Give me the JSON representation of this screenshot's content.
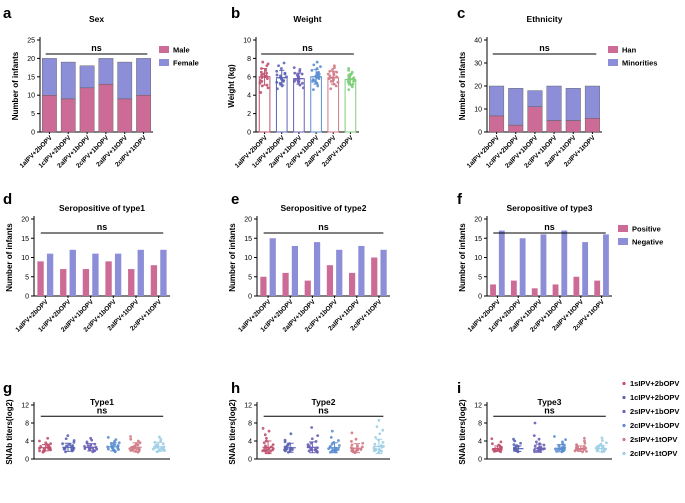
{
  "colors": {
    "pink": "#cc6c96",
    "blue": "#8c8ed8",
    "grey": "#555555"
  },
  "chart_data": [
    {
      "id": "a",
      "panel_letter": "a",
      "type": "bar",
      "stacked": true,
      "title": "Sex",
      "ylabel": "Number of infants",
      "ylim": [
        0,
        25
      ],
      "yticks": [
        0,
        5,
        10,
        15,
        20,
        25
      ],
      "categories": [
        "1aIPV+2bOPV",
        "1cIPV+2bOPV",
        "2aIPV+1bOPV",
        "2cIPV+1bOPV",
        "2aIPV+1tOPV",
        "2cIPV+1tOPV"
      ],
      "series": [
        {
          "name": "Male",
          "color": "#cc6c96",
          "values": [
            10,
            9,
            12,
            13,
            9,
            10
          ]
        },
        {
          "name": "Female",
          "color": "#8c8ed8",
          "values": [
            10,
            10,
            6,
            7,
            10,
            10
          ]
        }
      ],
      "annotation": "ns",
      "legend": "right"
    },
    {
      "id": "b",
      "panel_letter": "b",
      "type": "scatter_bar",
      "title": "Weight",
      "ylabel": "Weight (kg)",
      "ylim": [
        0,
        10
      ],
      "yticks": [
        0,
        2,
        4,
        6,
        8,
        10
      ],
      "categories": [
        "1aIPV+2bOPV",
        "1cIPV+2bOPV",
        "2aIPV+1bOPV",
        "2cIPV+1bOPV",
        "2aIPV+1tOPV",
        "2cIPV+1tOPV"
      ],
      "series": [
        {
          "name": "1aIPV+2bOPV",
          "color": "#c0506e",
          "mean": 6.0,
          "sd": 0.9,
          "points": [
            4.3,
            4.8,
            5.1,
            5.3,
            5.5,
            5.6,
            5.8,
            5.9,
            6.0,
            6.1,
            6.2,
            6.3,
            6.5,
            6.7,
            6.9,
            7.2,
            7.4,
            5.0,
            6.4,
            7.6
          ]
        },
        {
          "name": "1cIPV+2bOPV",
          "color": "#5a64b4",
          "mean": 5.9,
          "sd": 0.8,
          "points": [
            4.7,
            5.0,
            5.2,
            5.4,
            5.5,
            5.6,
            5.7,
            5.8,
            5.9,
            6.0,
            6.1,
            6.2,
            6.3,
            6.4,
            6.6,
            6.9,
            7.2,
            7.5,
            5.3
          ]
        },
        {
          "name": "2aIPV+1bOPV",
          "color": "#6a60b6",
          "mean": 5.8,
          "sd": 0.6,
          "points": [
            4.8,
            5.1,
            5.3,
            5.4,
            5.5,
            5.6,
            5.7,
            5.8,
            5.9,
            6.0,
            6.1,
            6.2,
            6.3,
            6.4,
            6.6,
            6.8,
            7.0,
            5.5
          ]
        },
        {
          "name": "2cIPV+1bOPV",
          "color": "#5b8ed0",
          "mean": 6.0,
          "sd": 0.8,
          "points": [
            4.6,
            5.0,
            5.3,
            5.5,
            5.6,
            5.7,
            5.8,
            5.9,
            6.0,
            6.1,
            6.2,
            6.3,
            6.5,
            6.7,
            6.9,
            7.1,
            7.3,
            7.6,
            5.4,
            6.4
          ]
        },
        {
          "name": "2aIPV+1tOPV",
          "color": "#d07a86",
          "mean": 5.9,
          "sd": 0.7,
          "points": [
            4.7,
            5.0,
            5.2,
            5.4,
            5.5,
            5.6,
            5.8,
            5.9,
            6.0,
            6.1,
            6.2,
            6.3,
            6.4,
            6.6,
            6.8,
            7.0,
            7.2,
            5.7,
            6.5
          ]
        },
        {
          "name": "2cIPV+1tOPV",
          "color": "#7ccd7a",
          "mean": 5.7,
          "sd": 0.6,
          "points": [
            4.6,
            4.9,
            5.1,
            5.2,
            5.3,
            5.4,
            5.5,
            5.6,
            5.7,
            5.8,
            5.9,
            6.0,
            6.1,
            6.2,
            6.3,
            6.5,
            6.7,
            6.9,
            5.5,
            5.8
          ]
        }
      ],
      "annotation": "ns"
    },
    {
      "id": "c",
      "panel_letter": "c",
      "type": "bar",
      "stacked": true,
      "title": "Ethnicity",
      "ylabel": "Number of infants",
      "ylim": [
        0,
        40
      ],
      "yticks": [
        0,
        10,
        20,
        30,
        40
      ],
      "categories": [
        "1aIPV+2bOPV",
        "1cIPV+2bOPV",
        "2aIPV+1bOPV",
        "2cIPV+1bOPV",
        "2aIPV+1tOPV",
        "2cIPV+1tOPV"
      ],
      "series": [
        {
          "name": "Han",
          "color": "#cc6c96",
          "values": [
            7,
            3,
            11,
            5,
            5,
            6
          ]
        },
        {
          "name": "Minorities",
          "color": "#8c8ed8",
          "values": [
            13,
            16,
            7,
            15,
            14,
            14
          ]
        }
      ],
      "annotation": "ns",
      "legend": "right"
    },
    {
      "id": "d",
      "panel_letter": "d",
      "type": "bar",
      "grouped": true,
      "title": "Seropositive of type1",
      "ylabel": "Number of infants",
      "ylim": [
        0,
        20
      ],
      "yticks": [
        0,
        5,
        10,
        15,
        20
      ],
      "categories": [
        "1aIPV+2bOPV",
        "1cIPV+2bOPV",
        "2aIPV+1bOPV",
        "2cIPV+1bOPV",
        "2aIPV+1tOPV",
        "2cIPV+1tOPV"
      ],
      "series": [
        {
          "name": "Positive",
          "color": "#cc6c96",
          "values": [
            9,
            7,
            7,
            9,
            7,
            8
          ]
        },
        {
          "name": "Negative",
          "color": "#8c8ed8",
          "values": [
            11,
            12,
            11,
            11,
            12,
            12
          ]
        }
      ],
      "annotation": "ns"
    },
    {
      "id": "e",
      "panel_letter": "e",
      "type": "bar",
      "grouped": true,
      "title": "Seropositive of type2",
      "ylabel": "Number of infants",
      "ylim": [
        0,
        20
      ],
      "yticks": [
        0,
        5,
        10,
        15,
        20
      ],
      "categories": [
        "1aIPV+2bOPV",
        "1cIPV+2bOPV",
        "2aIPV+1bOPV",
        "2cIPV+1bOPV",
        "2aIPV+1tOPV",
        "2cIPV+1tOPV"
      ],
      "series": [
        {
          "name": "Positive",
          "color": "#cc6c96",
          "values": [
            5,
            6,
            4,
            8,
            6,
            10
          ]
        },
        {
          "name": "Negative",
          "color": "#8c8ed8",
          "values": [
            15,
            13,
            14,
            12,
            13,
            12
          ]
        }
      ],
      "annotation": "ns"
    },
    {
      "id": "f",
      "panel_letter": "f",
      "type": "bar",
      "grouped": true,
      "title": "Seropositive of type3",
      "ylabel": "Number of infants",
      "ylim": [
        0,
        20
      ],
      "yticks": [
        0,
        5,
        10,
        15,
        20
      ],
      "categories": [
        "1aIPV+2bOPV",
        "1cIPV+2bOPV",
        "2aIPV+1bOPV",
        "2cIPV+1bOPV",
        "2aIPV+1tOPV",
        "2cIPV+1tOPV"
      ],
      "series": [
        {
          "name": "Positive",
          "color": "#cc6c96",
          "values": [
            3,
            4,
            2,
            3,
            5,
            4
          ]
        },
        {
          "name": "Negative",
          "color": "#8c8ed8",
          "values": [
            17,
            15,
            16,
            17,
            14,
            16
          ]
        }
      ],
      "annotation": "ns",
      "legend": "right"
    },
    {
      "id": "g",
      "panel_letter": "g",
      "type": "scatter",
      "title": "Type1",
      "ylabel": "SNAb titers(log2)",
      "ylim": [
        0,
        12
      ],
      "yticks": [
        0,
        4,
        8,
        12
      ],
      "series": [
        {
          "name": "1sIPV+2bOPV",
          "color": "#c0506e",
          "mean": 2.5,
          "sd": 0.7,
          "points": [
            1.5,
            1.7,
            1.8,
            1.9,
            2.0,
            2.1,
            2.2,
            2.3,
            2.4,
            2.5,
            2.6,
            2.7,
            2.8,
            3.0,
            3.2,
            3.4,
            3.6,
            4.0,
            4.6,
            2.2
          ]
        },
        {
          "name": "1cIPV+2bOPV",
          "color": "#5a64b4",
          "mean": 2.6,
          "sd": 0.9,
          "points": [
            1.6,
            1.8,
            1.9,
            2.0,
            2.1,
            2.2,
            2.3,
            2.4,
            2.5,
            2.6,
            2.7,
            2.9,
            3.0,
            3.2,
            3.4,
            3.7,
            4.1,
            4.5,
            5.2,
            2.4
          ]
        },
        {
          "name": "2sIPV+1bOPV",
          "color": "#6a60b6",
          "mean": 2.6,
          "sd": 0.8,
          "points": [
            1.6,
            1.8,
            1.9,
            2.0,
            2.1,
            2.2,
            2.3,
            2.4,
            2.5,
            2.6,
            2.8,
            2.9,
            3.1,
            3.3,
            3.5,
            3.8,
            4.2,
            4.6,
            2.3
          ]
        },
        {
          "name": "2cIPV+1bOPV",
          "color": "#5b8ed0",
          "mean": 2.7,
          "sd": 0.9,
          "points": [
            1.6,
            1.8,
            1.9,
            2.0,
            2.1,
            2.2,
            2.3,
            2.4,
            2.6,
            2.7,
            2.8,
            3.0,
            3.2,
            3.4,
            3.6,
            3.9,
            4.3,
            4.8,
            2.5,
            2.9
          ]
        },
        {
          "name": "2sIPV+1tOPV",
          "color": "#d07a86",
          "mean": 2.6,
          "sd": 1.0,
          "points": [
            1.5,
            1.7,
            1.8,
            1.9,
            2.0,
            2.1,
            2.2,
            2.3,
            2.4,
            2.6,
            2.7,
            2.9,
            3.1,
            3.3,
            3.6,
            4.0,
            4.4,
            5.0,
            2.2
          ]
        },
        {
          "name": "2cIPV+1tOPV",
          "color": "#9fcfe6",
          "mean": 2.7,
          "sd": 1.0,
          "points": [
            1.6,
            1.8,
            1.9,
            2.0,
            2.1,
            2.2,
            2.3,
            2.4,
            2.6,
            2.7,
            2.8,
            3.0,
            3.2,
            3.4,
            3.7,
            4.0,
            4.4,
            4.9,
            2.5
          ]
        }
      ],
      "annotation": "ns"
    },
    {
      "id": "h",
      "panel_letter": "h",
      "type": "scatter",
      "title": "Type2",
      "ylabel": "SNAb titers(log2)",
      "ylim": [
        0,
        12
      ],
      "yticks": [
        0,
        4,
        8,
        12
      ],
      "series": [
        {
          "name": "1sIPV+2bOPV",
          "color": "#c0506e",
          "mean": 2.6,
          "sd": 1.4,
          "points": [
            1.4,
            1.6,
            1.7,
            1.8,
            1.9,
            2.0,
            2.1,
            2.2,
            2.3,
            2.5,
            2.7,
            2.9,
            3.2,
            3.6,
            4.0,
            4.6,
            5.4,
            6.2,
            6.8,
            2.0
          ]
        },
        {
          "name": "1cIPV+2bOPV",
          "color": "#5a64b4",
          "mean": 2.5,
          "sd": 1.0,
          "points": [
            1.5,
            1.7,
            1.8,
            1.9,
            2.0,
            2.1,
            2.2,
            2.3,
            2.4,
            2.5,
            2.7,
            2.9,
            3.1,
            3.4,
            3.8,
            4.2,
            5.6,
            2.1
          ]
        },
        {
          "name": "2sIPV+1bOPV",
          "color": "#6a60b6",
          "mean": 2.6,
          "sd": 1.2,
          "points": [
            1.5,
            1.6,
            1.7,
            1.8,
            1.9,
            2.0,
            2.1,
            2.2,
            2.4,
            2.5,
            2.7,
            2.9,
            3.2,
            3.5,
            3.9,
            4.5,
            5.2,
            7.0,
            2.0
          ]
        },
        {
          "name": "2cIPV+1bOPV",
          "color": "#5b8ed0",
          "mean": 2.5,
          "sd": 1.1,
          "points": [
            1.5,
            1.6,
            1.7,
            1.8,
            1.9,
            2.0,
            2.1,
            2.3,
            2.4,
            2.6,
            2.8,
            3.0,
            3.3,
            3.7,
            4.1,
            4.8,
            6.2,
            2.1
          ]
        },
        {
          "name": "2sIPV+1tOPV",
          "color": "#d07a86",
          "mean": 2.4,
          "sd": 1.0,
          "points": [
            1.4,
            1.6,
            1.7,
            1.8,
            1.9,
            2.0,
            2.1,
            2.2,
            2.3,
            2.5,
            2.7,
            2.9,
            3.1,
            3.5,
            3.9,
            4.4,
            5.8,
            2.0
          ]
        },
        {
          "name": "2cIPV+1tOPV",
          "color": "#9fcfe6",
          "mean": 2.8,
          "sd": 1.6,
          "points": [
            1.5,
            1.7,
            1.8,
            1.9,
            2.0,
            2.1,
            2.2,
            2.4,
            2.6,
            2.8,
            3.0,
            3.3,
            3.7,
            4.2,
            4.8,
            5.6,
            6.4,
            7.2,
            8.6,
            2.1
          ]
        }
      ],
      "annotation": "ns"
    },
    {
      "id": "i",
      "panel_letter": "i",
      "type": "scatter",
      "title": "Type3",
      "ylabel": "SNAb titers(log2)",
      "ylim": [
        0,
        12
      ],
      "yticks": [
        0,
        4,
        8,
        12
      ],
      "series": [
        {
          "name": "1sIPV+2bOPV",
          "color": "#c0506e",
          "mean": 2.3,
          "sd": 0.6,
          "points": [
            1.6,
            1.7,
            1.8,
            1.9,
            2.0,
            2.1,
            2.2,
            2.3,
            2.4,
            2.5,
            2.6,
            2.7,
            2.9,
            3.1,
            3.4,
            3.8,
            4.5,
            2.1
          ]
        },
        {
          "name": "1cIPV+2bOPV",
          "color": "#5a64b4",
          "mean": 2.3,
          "sd": 0.6,
          "points": [
            1.6,
            1.7,
            1.8,
            1.9,
            2.0,
            2.1,
            2.2,
            2.3,
            2.4,
            2.5,
            2.6,
            2.8,
            3.0,
            3.2,
            3.5,
            4.0,
            4.4,
            2.2
          ]
        },
        {
          "name": "2sIPV+1bOPV",
          "color": "#6a60b6",
          "mean": 2.4,
          "sd": 0.9,
          "points": [
            1.6,
            1.7,
            1.8,
            1.9,
            2.0,
            2.1,
            2.2,
            2.3,
            2.4,
            2.5,
            2.7,
            2.9,
            3.1,
            3.4,
            3.8,
            4.4,
            5.2,
            8.0,
            2.1
          ]
        },
        {
          "name": "2cIPV+1bOPV",
          "color": "#5b8ed0",
          "mean": 2.4,
          "sd": 0.8,
          "points": [
            1.6,
            1.7,
            1.8,
            1.9,
            2.0,
            2.1,
            2.2,
            2.3,
            2.4,
            2.5,
            2.7,
            2.9,
            3.1,
            3.4,
            3.8,
            4.3,
            5.0,
            2.2
          ]
        },
        {
          "name": "2sIPV+1tOPV",
          "color": "#d07a86",
          "mean": 2.3,
          "sd": 0.6,
          "points": [
            1.6,
            1.7,
            1.8,
            1.9,
            2.0,
            2.1,
            2.2,
            2.3,
            2.4,
            2.5,
            2.6,
            2.8,
            3.0,
            3.2,
            3.5,
            4.0,
            4.6,
            2.2
          ]
        },
        {
          "name": "2cIPV+1tOPV",
          "color": "#9fcfe6",
          "mean": 2.3,
          "sd": 0.7,
          "points": [
            1.6,
            1.7,
            1.8,
            1.9,
            2.0,
            2.1,
            2.2,
            2.3,
            2.4,
            2.5,
            2.6,
            2.8,
            3.0,
            3.3,
            3.6,
            4.1,
            4.7,
            2.1
          ]
        }
      ],
      "annotation": "ns",
      "legend": "right"
    }
  ]
}
